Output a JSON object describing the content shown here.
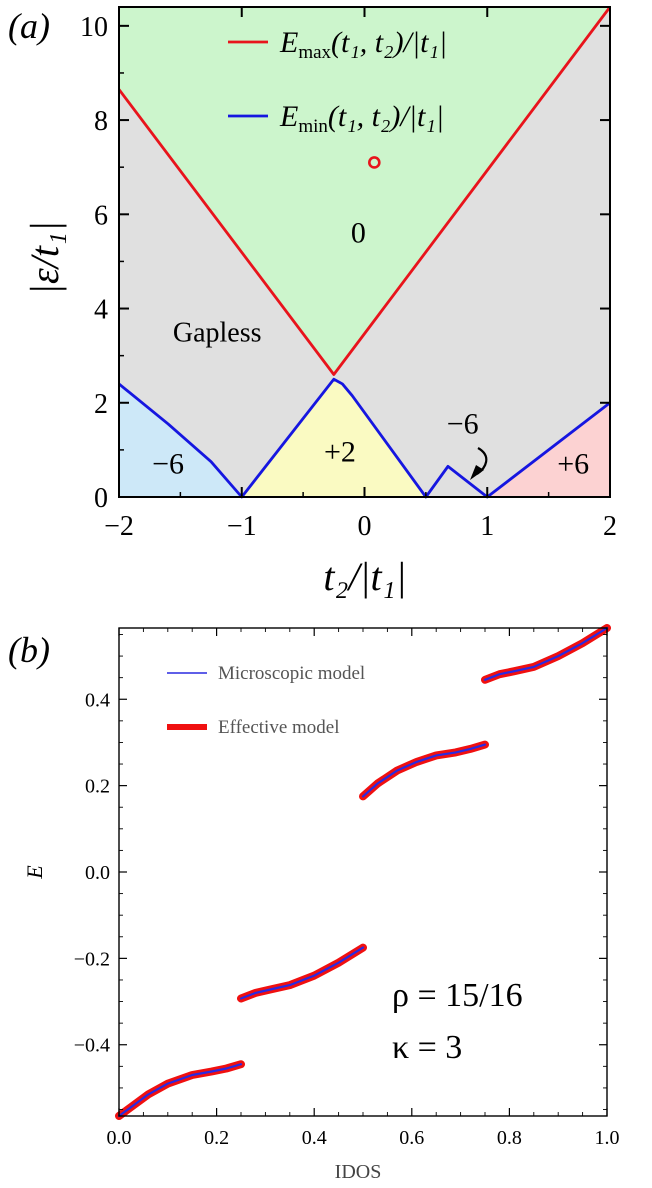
{
  "chart_data": [
    {
      "type": "area",
      "panel_label": "(a)",
      "xlabel": "t₂/|t₁|",
      "ylabel": "|ε/t₁|",
      "xlim": [
        -2,
        2
      ],
      "ylim": [
        0,
        10.4
      ],
      "x_ticks": [
        -2,
        -1,
        0,
        1,
        2
      ],
      "x_tick_labels": [
        "−2",
        "−1",
        "0",
        "1",
        "2"
      ],
      "y_ticks": [
        0,
        2,
        4,
        6,
        8,
        10
      ],
      "y_tick_labels": [
        "0",
        "2",
        "4",
        "6",
        "8",
        "10"
      ],
      "grid": false,
      "legend_position": "top-center",
      "series": [
        {
          "name": "Emax(t1,t2)/|t1|",
          "legend_main": "E",
          "legend_sub": "max",
          "legend_rest": "(t₁, t₂)/|t₁|",
          "color": "#e8141c",
          "x": [
            -2,
            -0.25,
            2
          ],
          "y": [
            8.65,
            2.6,
            10.4
          ]
        },
        {
          "name": "Emin(t1,t2)/|t1|",
          "legend_main": "E",
          "legend_sub": "min",
          "legend_rest": "(t₁, t₂)/|t₁|",
          "color": "#1616e0",
          "x": [
            -2,
            -1.6,
            -1.25,
            -1,
            -0.25,
            -0.18,
            -0.1,
            0.5,
            0.68,
            1,
            2
          ],
          "y": [
            2.4,
            1.55,
            0.75,
            0,
            2.5,
            2.4,
            2.15,
            0,
            0.65,
            0,
            2.0
          ]
        }
      ],
      "regions": [
        {
          "label": "0",
          "color": "#ccf5cc",
          "x": -0.05,
          "y": 5.4
        },
        {
          "label": "Gapless",
          "color": "#e0e0e0",
          "x": -1.2,
          "y": 3.3
        },
        {
          "label": "−6",
          "color": "#cde8f8",
          "x": -1.6,
          "y": 0.5
        },
        {
          "label": "+2",
          "color": "#fafac2",
          "x": -0.2,
          "y": 0.75
        },
        {
          "label": "−6",
          "color": "#e0e0e0",
          "x": 0.8,
          "y": 1.35
        },
        {
          "label": "+6",
          "color": "#fcd2d2",
          "x": 1.7,
          "y": 0.5
        }
      ],
      "marker": {
        "x": 0.08,
        "y": 7.1,
        "color": "#e8141c",
        "shape": "open-circle"
      }
    },
    {
      "type": "line",
      "panel_label": "(b)",
      "xlabel": "IDOS",
      "ylabel": "E",
      "xlim": [
        0,
        1
      ],
      "ylim": [
        -0.565,
        0.565
      ],
      "x_ticks": [
        0,
        0.2,
        0.4,
        0.6,
        0.8,
        1
      ],
      "x_tick_labels": [
        "0.0",
        "0.2",
        "0.4",
        "0.6",
        "0.8",
        "1.0"
      ],
      "y_ticks": [
        -0.4,
        -0.2,
        0,
        0.2,
        0.4
      ],
      "y_tick_labels": [
        "−0.4",
        "−0.2",
        "0.0",
        "0.2",
        "0.4"
      ],
      "grid": false,
      "legend_position": "top-left",
      "annotations": [
        "ρ = 15/16",
        "κ = 3"
      ],
      "series": [
        {
          "name": "Microscopic model",
          "color": "#2a2ae0",
          "segments": [
            {
              "x": [
                0,
                0.03,
                0.06,
                0.1,
                0.15,
                0.19,
                0.22,
                0.25
              ],
              "y": [
                -0.565,
                -0.54,
                -0.515,
                -0.49,
                -0.47,
                -0.462,
                -0.455,
                -0.445
              ]
            },
            {
              "x": [
                0.25,
                0.28,
                0.31,
                0.35,
                0.4,
                0.45,
                0.5
              ],
              "y": [
                -0.293,
                -0.28,
                -0.272,
                -0.262,
                -0.24,
                -0.21,
                -0.175
              ]
            },
            {
              "x": [
                0.5,
                0.53,
                0.57,
                0.61,
                0.65,
                0.69,
                0.72,
                0.75
              ],
              "y": [
                0.175,
                0.205,
                0.235,
                0.255,
                0.27,
                0.277,
                0.285,
                0.295
              ]
            },
            {
              "x": [
                0.75,
                0.78,
                0.81,
                0.85,
                0.9,
                0.95,
                1.0
              ],
              "y": [
                0.445,
                0.458,
                0.465,
                0.475,
                0.5,
                0.53,
                0.565
              ]
            }
          ]
        },
        {
          "name": "Effective model",
          "color": "#f01010",
          "segments": [
            {
              "x": [
                0,
                0.03,
                0.06,
                0.1,
                0.15,
                0.19,
                0.22,
                0.25
              ],
              "y": [
                -0.565,
                -0.54,
                -0.515,
                -0.49,
                -0.47,
                -0.462,
                -0.455,
                -0.445
              ]
            },
            {
              "x": [
                0.25,
                0.28,
                0.31,
                0.35,
                0.4,
                0.45,
                0.5
              ],
              "y": [
                -0.293,
                -0.28,
                -0.272,
                -0.262,
                -0.24,
                -0.21,
                -0.175
              ]
            },
            {
              "x": [
                0.5,
                0.53,
                0.57,
                0.61,
                0.65,
                0.69,
                0.72,
                0.75
              ],
              "y": [
                0.175,
                0.205,
                0.235,
                0.255,
                0.27,
                0.277,
                0.285,
                0.295
              ]
            },
            {
              "x": [
                0.75,
                0.78,
                0.81,
                0.85,
                0.9,
                0.95,
                1.0
              ],
              "y": [
                0.445,
                0.458,
                0.465,
                0.475,
                0.5,
                0.53,
                0.565
              ]
            }
          ]
        }
      ]
    }
  ]
}
